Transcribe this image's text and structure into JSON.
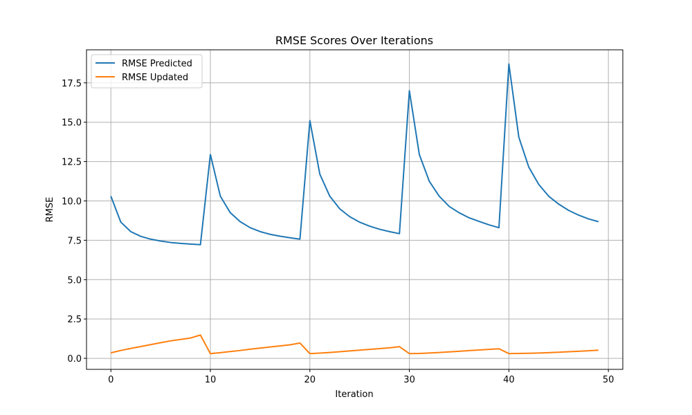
{
  "chart_data": {
    "type": "line",
    "title": "RMSE Scores Over Iterations",
    "xlabel": "Iteration",
    "ylabel": "RMSE",
    "xlim": [
      -2.45,
      51.45
    ],
    "ylim": [
      -0.7,
      19.6
    ],
    "xticks": [
      0,
      10,
      20,
      30,
      40,
      50
    ],
    "yticks": [
      0.0,
      2.5,
      5.0,
      7.5,
      10.0,
      12.5,
      15.0,
      17.5
    ],
    "xtick_labels": [
      "0",
      "10",
      "20",
      "30",
      "40",
      "50"
    ],
    "ytick_labels": [
      "0.0",
      "2.5",
      "5.0",
      "7.5",
      "10.0",
      "12.5",
      "15.0",
      "17.5"
    ],
    "grid": true,
    "legend_position": "upper-left",
    "x": [
      0,
      1,
      2,
      3,
      4,
      5,
      6,
      7,
      8,
      9,
      10,
      11,
      12,
      13,
      14,
      15,
      16,
      17,
      18,
      19,
      20,
      21,
      22,
      23,
      24,
      25,
      26,
      27,
      28,
      29,
      30,
      31,
      32,
      33,
      34,
      35,
      36,
      37,
      38,
      39,
      40,
      41,
      42,
      43,
      44,
      45,
      46,
      47,
      48,
      49
    ],
    "series": [
      {
        "name": "RMSE Predicted",
        "color": "#1f77b4",
        "values": [
          10.3,
          8.65,
          8.05,
          7.75,
          7.57,
          7.45,
          7.36,
          7.3,
          7.26,
          7.22,
          12.95,
          10.3,
          9.25,
          8.68,
          8.3,
          8.05,
          7.88,
          7.76,
          7.66,
          7.57,
          15.1,
          11.7,
          10.3,
          9.5,
          9.0,
          8.65,
          8.4,
          8.2,
          8.05,
          7.92,
          17.0,
          12.95,
          11.25,
          10.3,
          9.65,
          9.25,
          8.93,
          8.7,
          8.48,
          8.3,
          18.7,
          14.05,
          12.15,
          11.05,
          10.3,
          9.8,
          9.4,
          9.1,
          8.86,
          8.68
        ]
      },
      {
        "name": "RMSE Updated",
        "color": "#ff7f0e",
        "values": [
          0.35,
          0.5,
          0.63,
          0.75,
          0.87,
          0.99,
          1.11,
          1.2,
          1.29,
          1.48,
          0.3,
          0.36,
          0.43,
          0.5,
          0.58,
          0.65,
          0.72,
          0.79,
          0.86,
          0.97,
          0.3,
          0.33,
          0.37,
          0.42,
          0.47,
          0.52,
          0.57,
          0.62,
          0.67,
          0.74,
          0.3,
          0.31,
          0.34,
          0.37,
          0.41,
          0.45,
          0.49,
          0.53,
          0.57,
          0.61,
          0.3,
          0.31,
          0.32,
          0.34,
          0.36,
          0.39,
          0.42,
          0.45,
          0.48,
          0.52
        ]
      }
    ]
  }
}
